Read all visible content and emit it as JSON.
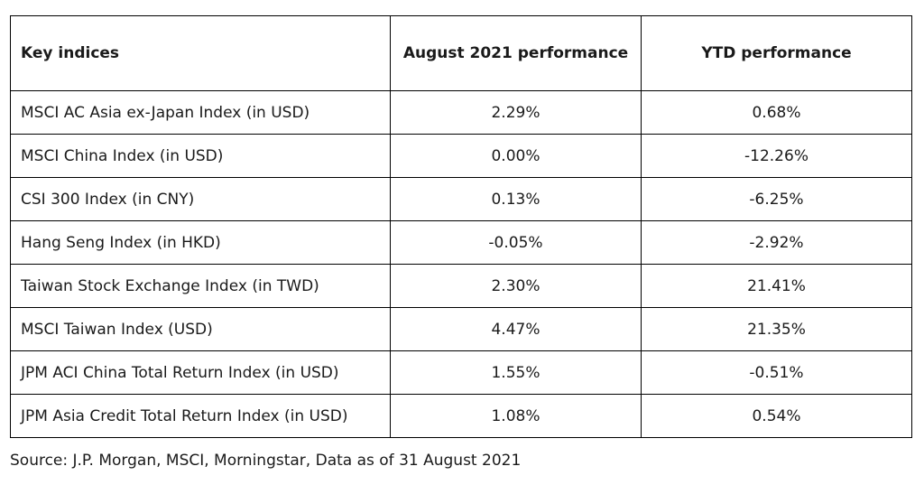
{
  "table": {
    "headers": {
      "name": "Key indices",
      "august": "August 2021 performance",
      "ytd": "YTD performance"
    },
    "rows": [
      {
        "name": "MSCI AC Asia ex-Japan Index (in USD)",
        "august": "2.29%",
        "ytd": "0.68%"
      },
      {
        "name": "MSCI China Index (in USD)",
        "august": "0.00%",
        "ytd": "-12.26%"
      },
      {
        "name": "CSI 300 Index (in CNY)",
        "august": "0.13%",
        "ytd": "-6.25%"
      },
      {
        "name": "Hang Seng Index (in HKD)",
        "august": "-0.05%",
        "ytd": "-2.92%"
      },
      {
        "name": "Taiwan Stock Exchange Index (in TWD)",
        "august": "2.30%",
        "ytd": "21.41%"
      },
      {
        "name": "MSCI Taiwan Index (USD)",
        "august": "4.47%",
        "ytd": "21.35%"
      },
      {
        "name": "JPM ACI China Total Return Index (in USD)",
        "august": "1.55%",
        "ytd": "-0.51%"
      },
      {
        "name": "JPM Asia Credit Total Return Index (in USD)",
        "august": "1.08%",
        "ytd": "0.54%"
      }
    ]
  },
  "source": "Source: J.P. Morgan, MSCI, Morningstar, Data as of 31 August 2021"
}
